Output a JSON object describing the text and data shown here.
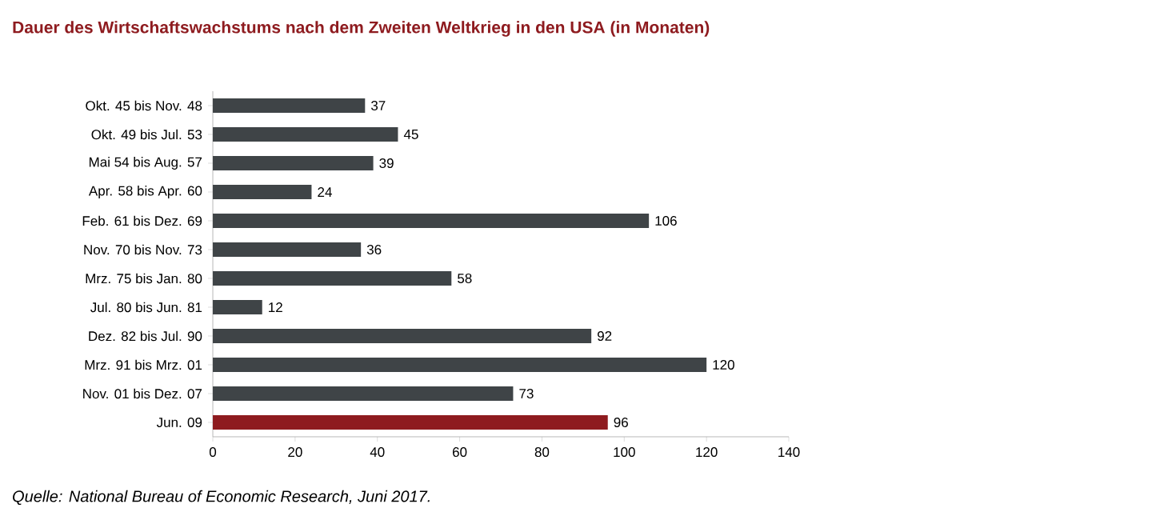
{
  "chart_data": {
    "type": "bar",
    "orientation": "horizontal",
    "title": "Dauer des Wirtschaftswachstums nach dem Zweiten Weltkrieg in den USA (in Monaten)",
    "categories": [
      "Okt. 45 bis Nov. 48",
      "Okt. 49 bis Jul. 53",
      "Mai 54 bis Aug. 57",
      "Apr. 58 bis Apr. 60",
      "Feb. 61 bis Dez. 69",
      "Nov. 70 bis Nov. 73",
      "Mrz. 75 bis Jan. 80",
      "Jul. 80 bis Jun. 81",
      "Dez. 82 bis Jul. 90",
      "Mrz. 91 bis Mrz. 01",
      "Nov. 01 bis Dez. 07",
      "Jun. 09"
    ],
    "values": [
      37,
      45,
      39,
      24,
      106,
      36,
      58,
      12,
      92,
      120,
      73,
      96
    ],
    "colors": [
      "#3f4447",
      "#3f4447",
      "#3f4447",
      "#3f4447",
      "#3f4447",
      "#3f4447",
      "#3f4447",
      "#3f4447",
      "#3f4447",
      "#3f4447",
      "#3f4447",
      "#8e1b1f"
    ],
    "data_labels": true,
    "xlim": [
      0,
      140
    ],
    "xticks": [
      0,
      20,
      40,
      60,
      80,
      100,
      120,
      140
    ],
    "grid": false,
    "annotations": [
      "Quelle: National Bureau of Economic Research, Juni 2017."
    ]
  }
}
